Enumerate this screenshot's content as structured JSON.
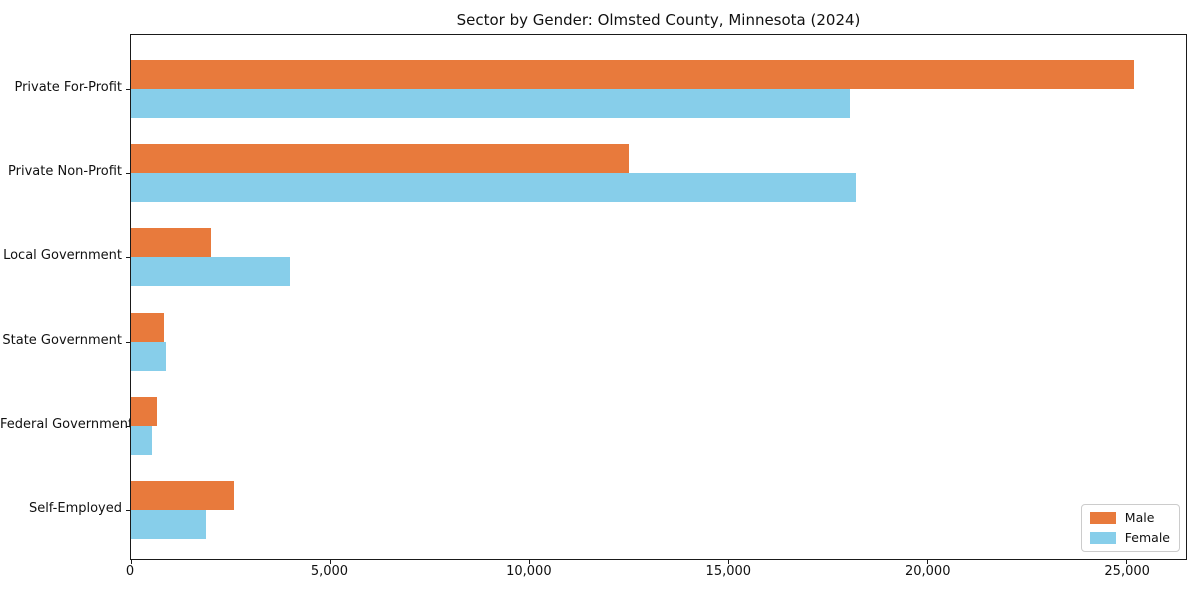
{
  "chart_data": {
    "type": "bar",
    "orientation": "horizontal",
    "title": "Sector by Gender: Olmsted County, Minnesota (2024)",
    "categories": [
      "Private For-Profit",
      "Private Non-Profit",
      "Local Government",
      "State Government",
      "Federal Government",
      "Self-Employed"
    ],
    "series": [
      {
        "name": "Male",
        "color": "#e87a3c",
        "values": [
          25200,
          12500,
          2000,
          820,
          660,
          2590
        ]
      },
      {
        "name": "Female",
        "color": "#87ceea",
        "values": [
          18050,
          18200,
          4000,
          880,
          520,
          1890
        ]
      }
    ],
    "xlabel": "",
    "ylabel": "",
    "xlim": [
      0,
      26500
    ],
    "xticks": [
      0,
      5000,
      10000,
      15000,
      20000,
      25000
    ],
    "xtick_labels": [
      "0",
      "5,000",
      "10,000",
      "15,000",
      "20,000",
      "25,000"
    ],
    "grid": false,
    "legend": {
      "position": "lower-right",
      "entries": [
        "Male",
        "Female"
      ]
    }
  }
}
